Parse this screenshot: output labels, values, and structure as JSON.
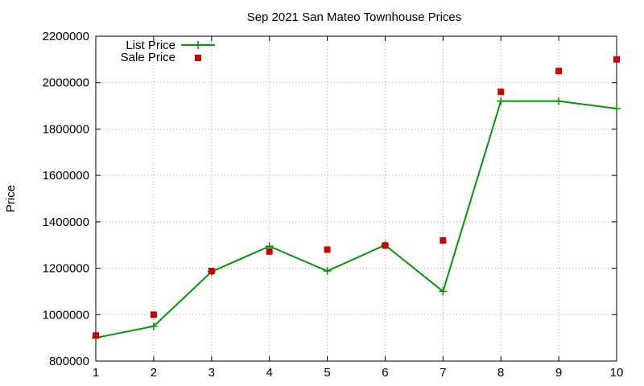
{
  "chart_data": {
    "type": "line",
    "title": "Sep 2021 San Mateo Townhouse Prices",
    "xlabel": "",
    "ylabel": "Price",
    "x": [
      1,
      2,
      3,
      4,
      5,
      6,
      7,
      8,
      9,
      10
    ],
    "xlim": [
      1,
      10
    ],
    "ylim": [
      800000,
      2200000
    ],
    "yticks": [
      800000,
      1000000,
      1200000,
      1400000,
      1600000,
      1800000,
      2000000,
      2200000
    ],
    "grid": true,
    "legend_position": "top-left",
    "series": [
      {
        "name": "List Price",
        "style": "line+plus",
        "color": "#009900",
        "values": [
          900000,
          950000,
          1185000,
          1295000,
          1188000,
          1300000,
          1100000,
          1920000,
          1920000,
          1888000
        ]
      },
      {
        "name": "Sale Price",
        "style": "square-points",
        "color": "#cc0000",
        "values": [
          910000,
          1000000,
          1188000,
          1272000,
          1280000,
          1298000,
          1320000,
          1960000,
          2050000,
          2100000
        ]
      }
    ]
  }
}
